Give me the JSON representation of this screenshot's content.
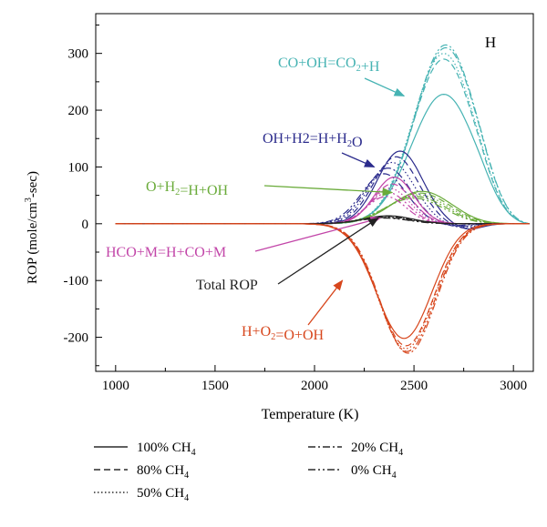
{
  "chart_data": {
    "type": "line",
    "panel_label": "H",
    "xlabel": "Temperature (K)",
    "ylabel": {
      "pre": "ROP (mole/cm",
      "sup": "3",
      "post": "-sec)"
    },
    "xlim": [
      900,
      3100
    ],
    "ylim": [
      -260,
      370
    ],
    "xticks": [
      1000,
      1500,
      2000,
      2500,
      3000
    ],
    "yticks": [
      -200,
      -100,
      0,
      100,
      200,
      300
    ],
    "grid": false,
    "legend_placement": "bottom",
    "colors": {
      "co_oh": "#46b3b3",
      "oh_h2": "#2b2b8c",
      "o_h2": "#6aab3a",
      "hco_m": "#c245a8",
      "total": "#222222",
      "h_o2": "#d7461c"
    },
    "reactions": [
      {
        "key": "co_oh",
        "label": {
          "parts": [
            {
              "t": "CO+OH=CO"
            },
            {
              "t": "2",
              "sub": true
            },
            {
              "t": "+H"
            }
          ]
        },
        "series": [
          {
            "case": "100% CH4",
            "peak_x": 2650,
            "peak_y": 228,
            "width": 230,
            "end_x": 3080
          },
          {
            "case": "80% CH4",
            "peak_x": 2650,
            "peak_y": 290,
            "width": 220,
            "end_x": 3080
          },
          {
            "case": "50% CH4",
            "peak_x": 2650,
            "peak_y": 300,
            "width": 220,
            "end_x": 3080
          },
          {
            "case": "20% CH4",
            "peak_x": 2660,
            "peak_y": 310,
            "width": 220,
            "end_x": 3080
          },
          {
            "case": "0% CH4",
            "peak_x": 2660,
            "peak_y": 315,
            "width": 220,
            "end_x": 3080
          }
        ]
      },
      {
        "key": "oh_h2",
        "label": {
          "parts": [
            {
              "t": "OH+H2=H+H"
            },
            {
              "t": "2",
              "sub": true
            },
            {
              "t": "O"
            }
          ]
        },
        "series": [
          {
            "case": "100% CH4",
            "peak_x": 2430,
            "peak_y": 128,
            "width": 160,
            "neg_x": 2780,
            "neg_y": -12,
            "end_x": 3080
          },
          {
            "case": "80% CH4",
            "peak_x": 2410,
            "peak_y": 118,
            "width": 160,
            "neg_x": 2760,
            "neg_y": -10,
            "end_x": 3080
          },
          {
            "case": "50% CH4",
            "peak_x": 2390,
            "peak_y": 108,
            "width": 160,
            "neg_x": 2740,
            "neg_y": -8,
            "end_x": 3080
          },
          {
            "case": "20% CH4",
            "peak_x": 2370,
            "peak_y": 98,
            "width": 160,
            "neg_x": 2720,
            "neg_y": -6,
            "end_x": 3080
          },
          {
            "case": "0% CH4",
            "peak_x": 2350,
            "peak_y": 88,
            "width": 160,
            "neg_x": 2700,
            "neg_y": -4,
            "end_x": 3080
          }
        ]
      },
      {
        "key": "o_h2",
        "label": {
          "parts": [
            {
              "t": "O+H"
            },
            {
              "t": "2",
              "sub": true
            },
            {
              "t": "=H+OH"
            }
          ]
        },
        "series": [
          {
            "case": "100% CH4",
            "peak_x": 2540,
            "peak_y": 57,
            "width": 210,
            "end_x": 3080
          },
          {
            "case": "80% CH4",
            "peak_x": 2530,
            "peak_y": 54,
            "width": 210,
            "end_x": 3080
          },
          {
            "case": "50% CH4",
            "peak_x": 2520,
            "peak_y": 51,
            "width": 210,
            "end_x": 3080
          },
          {
            "case": "20% CH4",
            "peak_x": 2510,
            "peak_y": 48,
            "width": 210,
            "end_x": 3080
          },
          {
            "case": "0% CH4",
            "peak_x": 2500,
            "peak_y": 45,
            "width": 210,
            "end_x": 3080
          }
        ]
      },
      {
        "key": "hco_m",
        "label": {
          "parts": [
            {
              "t": "HCO+M=H+CO+M"
            }
          ]
        },
        "series": [
          {
            "case": "100% CH4",
            "peak_x": 2400,
            "peak_y": 82,
            "width": 140,
            "end_x": 3000
          },
          {
            "case": "80% CH4",
            "peak_x": 2390,
            "peak_y": 70,
            "width": 140,
            "end_x": 3000
          },
          {
            "case": "50% CH4",
            "peak_x": 2380,
            "peak_y": 62,
            "width": 140,
            "end_x": 3000
          },
          {
            "case": "20% CH4",
            "peak_x": 2370,
            "peak_y": 55,
            "width": 140,
            "end_x": 3000
          },
          {
            "case": "0% CH4",
            "peak_x": 2360,
            "peak_y": 48,
            "width": 140,
            "end_x": 3000
          }
        ]
      },
      {
        "key": "total",
        "label": {
          "parts": [
            {
              "t": "Total ROP"
            }
          ]
        },
        "series": [
          {
            "case": "100% CH4",
            "peak_x": 2370,
            "peak_y": 14,
            "width": 170,
            "end_x": 3080
          },
          {
            "case": "80% CH4",
            "peak_x": 2360,
            "peak_y": 13,
            "width": 170,
            "end_x": 3080
          },
          {
            "case": "50% CH4",
            "peak_x": 2360,
            "peak_y": 12,
            "width": 170,
            "end_x": 3080
          },
          {
            "case": "20% CH4",
            "peak_x": 2350,
            "peak_y": 11,
            "width": 170,
            "end_x": 3080
          },
          {
            "case": "0% CH4",
            "peak_x": 2350,
            "peak_y": 10,
            "width": 170,
            "end_x": 3080
          }
        ]
      },
      {
        "key": "h_o2",
        "label": {
          "parts": [
            {
              "t": "H+O"
            },
            {
              "t": "2",
              "sub": true
            },
            {
              "t": "=O+OH"
            }
          ]
        },
        "series": [
          {
            "case": "100% CH4",
            "peak_x": 2450,
            "peak_y": -202,
            "width": 195,
            "end_x": 3080
          },
          {
            "case": "80% CH4",
            "peak_x": 2460,
            "peak_y": -215,
            "width": 195,
            "end_x": 3080
          },
          {
            "case": "50% CH4",
            "peak_x": 2460,
            "peak_y": -220,
            "width": 195,
            "end_x": 3080
          },
          {
            "case": "20% CH4",
            "peak_x": 2465,
            "peak_y": -225,
            "width": 195,
            "end_x": 3080
          },
          {
            "case": "0% CH4",
            "peak_x": 2470,
            "peak_y": -228,
            "width": 195,
            "end_x": 3080
          }
        ]
      }
    ],
    "legend": [
      {
        "style": "solid",
        "parts": [
          {
            "t": "100% CH"
          },
          {
            "t": "4",
            "sub": true
          }
        ]
      },
      {
        "style": "dash",
        "parts": [
          {
            "t": "80% CH"
          },
          {
            "t": "4",
            "sub": true
          }
        ]
      },
      {
        "style": "dot",
        "parts": [
          {
            "t": "50% CH"
          },
          {
            "t": "4",
            "sub": true
          }
        ]
      },
      {
        "style": "dashdot",
        "parts": [
          {
            "t": "20% CH"
          },
          {
            "t": "4",
            "sub": true
          }
        ]
      },
      {
        "style": "dashdotdot",
        "parts": [
          {
            "t": "0% CH"
          },
          {
            "t": "4",
            "sub": true
          }
        ]
      }
    ]
  }
}
